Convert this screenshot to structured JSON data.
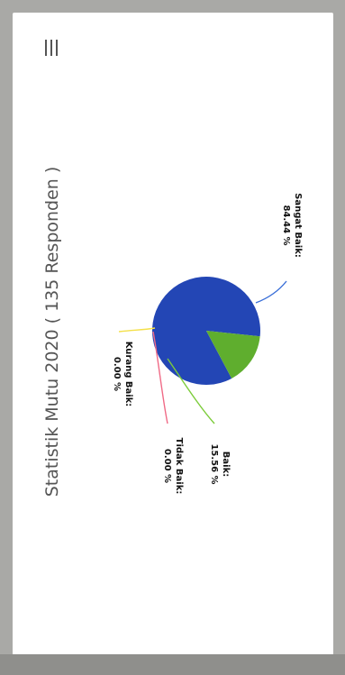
{
  "chart_data": {
    "type": "pie",
    "title": "Statistik Mutu 2020 ( 135 Responden )",
    "series": [
      {
        "slices": [
          {
            "label": "Sangat Baik",
            "value": 84.44,
            "value_label": "84.44 %",
            "color": "#2346b5",
            "leader_color": "#3a6fd8"
          },
          {
            "label": "Baik",
            "value": 15.56,
            "value_label": "15.56 %",
            "color": "#5fae2e",
            "leader_color": "#7ccc3a"
          },
          {
            "label": "Tidak Baik",
            "value": 0.0,
            "value_label": "0.00 %",
            "color": "#e8506a",
            "leader_color": "#f06a86"
          },
          {
            "label": "Kurang Baik",
            "value": 0.0,
            "value_label": "0.00 %",
            "color": "#f2d52a",
            "leader_color": "#f4e04a"
          }
        ]
      }
    ]
  },
  "menu_icon": "hamburger-menu-icon"
}
